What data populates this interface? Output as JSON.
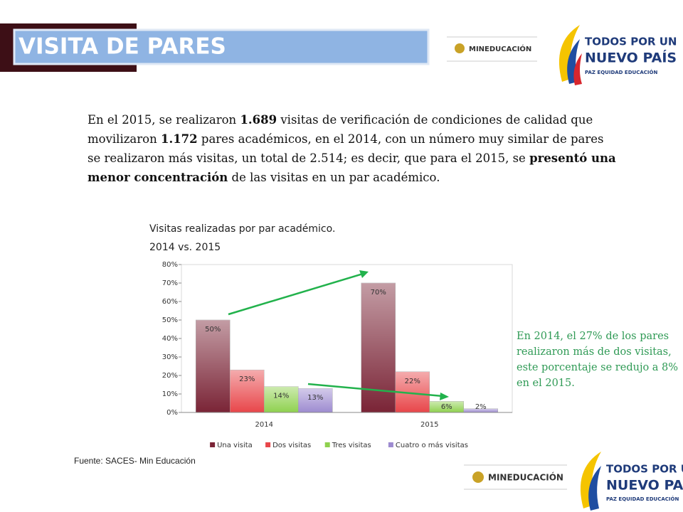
{
  "header": {
    "title": "VISITA DE PARES",
    "logo_text": "MINEDUCACIÓN",
    "brand_lines": [
      "TODOS POR UN",
      "NUEVO PAÍS",
      "PAZ  EQUIDAD  EDUCACIÓN"
    ]
  },
  "body": {
    "segments": [
      {
        "text": "En el 2015, se realizaron ",
        "bold": false
      },
      {
        "text": "1.689",
        "bold": true
      },
      {
        "text": " visitas de verificación de condiciones de calidad que movilizaron ",
        "bold": false
      },
      {
        "text": "1.172",
        "bold": true
      },
      {
        "text": " pares académicos,  en el 2014, con un número muy similar de pares se realizaron más visitas, un total de 2.514; es decir, que para el 2015, se ",
        "bold": false
      },
      {
        "text": "presentó una menor concentración",
        "bold": true
      },
      {
        "text": " de las visitas en un par académico.",
        "bold": false
      }
    ]
  },
  "chart_data": {
    "type": "bar",
    "title_lines": [
      "Visitas realizadas por par académico.",
      "2014 vs. 2015"
    ],
    "categories": [
      "2014",
      "2015"
    ],
    "series": [
      {
        "name": "Una visita",
        "color": "#7a2436",
        "values": [
          50,
          70
        ],
        "value_labels": [
          "50%",
          "70%"
        ]
      },
      {
        "name": "Dos visitas",
        "color": "#e8464a",
        "values": [
          23,
          22
        ],
        "value_labels": [
          "23%",
          "22%"
        ]
      },
      {
        "name": "Tres visitas",
        "color": "#8fd14f",
        "values": [
          14,
          6
        ],
        "value_labels": [
          "14%",
          "6%"
        ]
      },
      {
        "name": "Cuatro o más visitas",
        "color": "#9d8bd0",
        "values": [
          13,
          2
        ],
        "value_labels": [
          "13%",
          "2%"
        ]
      }
    ],
    "ylim": [
      0,
      80
    ],
    "yticks": [
      {
        "value": 0,
        "label": "0%"
      },
      {
        "value": 10,
        "label": "10%"
      },
      {
        "value": 20,
        "label": "20%"
      },
      {
        "value": 30,
        "label": "30%"
      },
      {
        "value": 40,
        "label": "40%"
      },
      {
        "value": 50,
        "label": "50%"
      },
      {
        "value": 60,
        "label": "60%"
      },
      {
        "value": 70,
        "label": "70%"
      },
      {
        "value": 80,
        "label": "80%"
      }
    ],
    "legend": "bottom"
  },
  "annotation": "En 2014, el 27% de los pares realizaron más de dos visitas, este porcentaje se redujo a 8% en el 2015.",
  "source": "Fuente: SACES- Min Educación"
}
